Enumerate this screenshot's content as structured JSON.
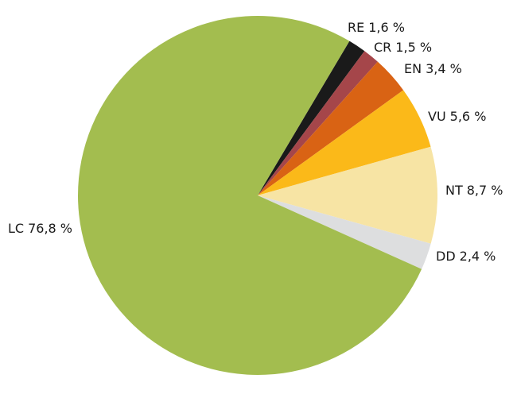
{
  "chart_data": {
    "type": "pie",
    "categories": [
      "RE",
      "CR",
      "EN",
      "VU",
      "NT",
      "DD",
      "LC"
    ],
    "values": [
      1.6,
      1.5,
      3.4,
      5.6,
      8.7,
      2.4,
      76.8
    ],
    "value_labels": [
      "1,6 %",
      "1,5 %",
      "3,4 %",
      "5,6 %",
      "8,7 %",
      "2,4 %",
      "76,8 %"
    ],
    "colors": [
      "#1a1a1a",
      "#a5464a",
      "#d96314",
      "#fbb919",
      "#f7e4a4",
      "#dddedf",
      "#a3bd4f"
    ]
  }
}
